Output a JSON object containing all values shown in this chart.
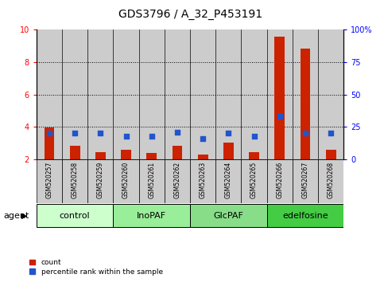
{
  "title": "GDS3796 / A_32_P453191",
  "samples": [
    "GSM520257",
    "GSM520258",
    "GSM520259",
    "GSM520260",
    "GSM520261",
    "GSM520262",
    "GSM520263",
    "GSM520264",
    "GSM520265",
    "GSM520266",
    "GSM520267",
    "GSM520268"
  ],
  "count_values": [
    3.95,
    2.85,
    2.45,
    2.6,
    2.4,
    2.85,
    2.3,
    3.05,
    2.45,
    9.55,
    8.85,
    2.6
  ],
  "percentile_values": [
    20.0,
    20.0,
    20.0,
    18.0,
    18.0,
    21.0,
    16.0,
    20.0,
    18.0,
    33.0,
    20.0,
    20.0
  ],
  "groups": [
    {
      "label": "control",
      "start": 0,
      "end": 3,
      "color": "#ccffcc"
    },
    {
      "label": "InoPAF",
      "start": 3,
      "end": 6,
      "color": "#99ee99"
    },
    {
      "label": "GlcPAF",
      "start": 6,
      "end": 9,
      "color": "#88dd88"
    },
    {
      "label": "edelfosine",
      "start": 9,
      "end": 12,
      "color": "#44cc44"
    }
  ],
  "ylim_left": [
    2,
    10
  ],
  "ylim_right": [
    0,
    100
  ],
  "yticks_left": [
    2,
    4,
    6,
    8,
    10
  ],
  "yticks_right": [
    0,
    25,
    50,
    75,
    100
  ],
  "yticklabels_right": [
    "0",
    "25",
    "50",
    "75",
    "100%"
  ],
  "bar_color": "#cc2200",
  "dot_color": "#2255cc",
  "bar_width": 0.4,
  "dot_size": 22,
  "plot_bg": "#ffffff",
  "sample_cell_color": "#cccccc",
  "agent_label": "agent",
  "legend_count": "count",
  "legend_pct": "percentile rank within the sample",
  "title_fontsize": 10,
  "tick_fontsize": 7,
  "label_fontsize": 8,
  "sample_fontsize": 5.5,
  "group_fontsize": 8
}
